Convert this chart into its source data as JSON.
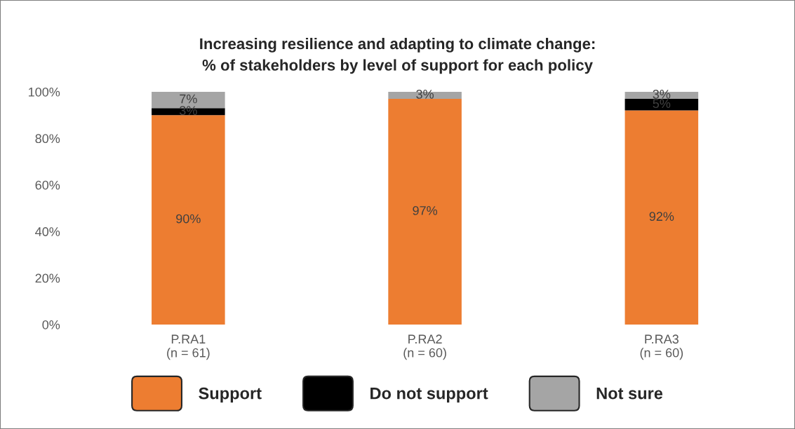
{
  "chart_data": {
    "type": "bar",
    "title": "Increasing resilience and adapting to climate change:\n% of stakeholders by level of support for each policy",
    "categories": [
      "P.RA1\n(n = 61)",
      "P.RA2\n(n = 60)",
      "P.RA3\n(n = 60)"
    ],
    "stacked": true,
    "series": [
      {
        "name": "Support",
        "color": "#ed7d31",
        "values": [
          90,
          97,
          92
        ],
        "value_labels": [
          "90%",
          "97%",
          "92%"
        ]
      },
      {
        "name": "Do not support",
        "color": "#000000",
        "values": [
          3,
          0,
          5
        ],
        "value_labels": [
          "3%",
          null,
          "5%"
        ]
      },
      {
        "name": "Not sure",
        "color": "#a5a5a5",
        "values": [
          7,
          3,
          3
        ],
        "value_labels": [
          "7%",
          "3%",
          "3%"
        ]
      }
    ],
    "ylim": [
      0,
      100
    ],
    "yticks": [
      {
        "value": 0,
        "label": "0%"
      },
      {
        "value": 20,
        "label": "20%"
      },
      {
        "value": 40,
        "label": "40%"
      },
      {
        "value": 60,
        "label": "60%"
      },
      {
        "value": 80,
        "label": "80%"
      },
      {
        "value": 100,
        "label": "100%"
      }
    ],
    "grid": false,
    "legend": "bottom"
  }
}
